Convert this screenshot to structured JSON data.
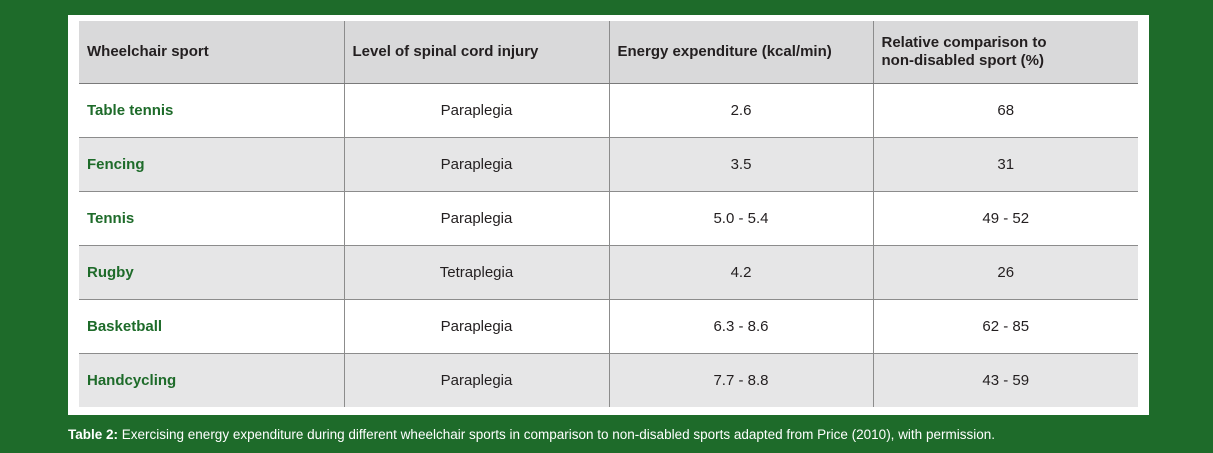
{
  "table": {
    "headers": [
      "Wheelchair sport",
      "Level of spinal cord injury",
      "Energy expenditure (kcal/min)",
      "Relative comparison to non-disabled sport (%)"
    ],
    "rows": [
      {
        "sport": "Table tennis",
        "injury": "Paraplegia",
        "energy": "2.6",
        "relative": "68"
      },
      {
        "sport": "Fencing",
        "injury": "Paraplegia",
        "energy": "3.5",
        "relative": "31"
      },
      {
        "sport": "Tennis",
        "injury": "Paraplegia",
        "energy": "5.0 - 5.4",
        "relative": "49 - 52"
      },
      {
        "sport": "Rugby",
        "injury": "Tetraplegia",
        "energy": "4.2",
        "relative": "26"
      },
      {
        "sport": "Basketball",
        "injury": "Paraplegia",
        "energy": "6.3 - 8.6",
        "relative": "62 - 85"
      },
      {
        "sport": "Handcycling",
        "injury": "Paraplegia",
        "energy": "7.7 - 8.8",
        "relative": "43 - 59"
      }
    ]
  },
  "caption": {
    "label": "Table 2:",
    "text": " Exercising energy expenditure during different wheelchair sports in comparison to non-disabled sports adapted from Price (2010), with permission."
  },
  "colors": {
    "background": "#1e6b2a",
    "header_fill": "#d9d9da",
    "sport_text": "#1e6b2a",
    "stripe": "#e6e6e7"
  }
}
